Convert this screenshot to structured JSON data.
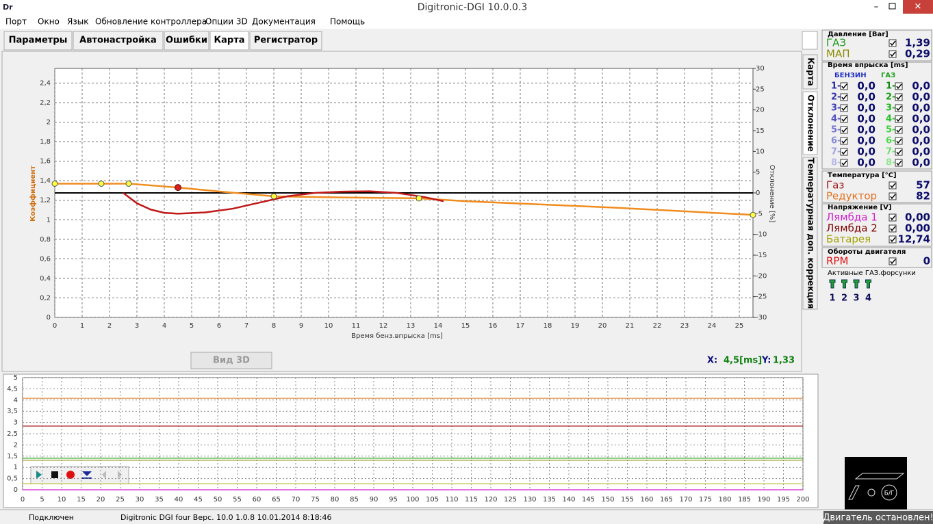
{
  "window": {
    "title": "Digitronic-DGI  10.0.0.3",
    "logo": "Dr"
  },
  "menu": [
    "Порт",
    "Окно",
    "Язык",
    "Обновление контроллера",
    "Опции 3D",
    "Документация",
    "Помощь"
  ],
  "tabs": [
    "Параметры",
    "Автонастройка",
    "Ошибки",
    "Карта",
    "Регистратор"
  ],
  "side_tabs": [
    "Карта",
    "Отклонение",
    "Температурная доп. коррекция"
  ],
  "main_chart": {
    "type": "line",
    "y_label": "Коэффициент",
    "y2_label": "Отклонение [%]",
    "x_label": "Время бенз.впрыска [ms]",
    "xlim": [
      0,
      25.5
    ],
    "ylim": [
      0,
      2.55
    ],
    "y2lim": [
      -30,
      30
    ],
    "xticks": [
      0,
      1,
      2,
      3,
      4,
      5,
      6,
      7,
      8,
      9,
      10,
      11,
      12,
      13,
      14,
      15,
      16,
      17,
      18,
      19,
      20,
      21,
      22,
      23,
      24,
      25
    ],
    "yticks": [
      0,
      {
        "value": 0.2,
        "label": "0,2"
      },
      {
        "value": 0.4,
        "label": "0,4"
      },
      {
        "value": 0.6,
        "label": "0,6"
      },
      {
        "value": 0.8,
        "label": "0,8"
      },
      1,
      {
        "value": 1.2,
        "label": "1,2"
      },
      {
        "value": 1.4,
        "label": "1,4"
      },
      {
        "value": 1.6,
        "label": "1,6"
      },
      {
        "value": 1.8,
        "label": "1,8"
      },
      2,
      {
        "value": 2.2,
        "label": "2,2"
      },
      {
        "value": 2.4,
        "label": "2,4"
      }
    ],
    "y2ticks": [
      -30,
      -25,
      -20,
      -15,
      -10,
      -5,
      0,
      5,
      10,
      15,
      20,
      25,
      30
    ],
    "grid": true,
    "series": [
      {
        "color": "#f08c1e",
        "x": [
          0,
          1.7,
          2.7,
          4.5,
          6,
          8,
          10,
          13.3,
          15,
          20,
          25.5
        ],
        "values": [
          1.37,
          1.37,
          1.37,
          1.33,
          1.29,
          1.24,
          1.23,
          1.22,
          1.19,
          1.13,
          1.05
        ]
      },
      {
        "color": "#c01818",
        "axis": "y2",
        "x": [
          2.5,
          3,
          3.5,
          4,
          4.5,
          5.5,
          6.5,
          7.5,
          8.5,
          9.5,
          10.5,
          11.5,
          12.5,
          13.5,
          14.2
        ],
        "values": [
          0,
          -2.5,
          -4,
          -4.8,
          -5,
          -4.7,
          -3.8,
          -2.3,
          -0.8,
          0,
          0.3,
          0.4,
          0,
          -1,
          -2
        ]
      }
    ],
    "points": {
      "color": "#ffff40",
      "x": [
        0,
        1.7,
        2.7,
        8,
        13.3,
        25.5
      ],
      "values": [
        1.37,
        1.37,
        1.37,
        1.24,
        1.22,
        1.05
      ]
    },
    "cursor": {
      "color": "#d82020",
      "x": 4.5,
      "value": 1.33
    }
  },
  "button_3d": "Вид 3D",
  "coords": {
    "x_label": "X:",
    "x_value": "4,5[ms]",
    "y_label": "Y:",
    "y_value": "1,33"
  },
  "log_chart": {
    "type": "line",
    "xlim": [
      0,
      200
    ],
    "ylim": [
      0,
      5
    ],
    "xticks": [
      0,
      5,
      10,
      15,
      20,
      25,
      30,
      35,
      40,
      45,
      50,
      55,
      60,
      65,
      70,
      75,
      80,
      85,
      90,
      95,
      100,
      105,
      110,
      115,
      120,
      125,
      130,
      135,
      140,
      145,
      150,
      155,
      160,
      165,
      170,
      175,
      180,
      185,
      190,
      195,
      200
    ],
    "yticks": [
      0,
      {
        "value": 0.5,
        "label": "0,5"
      },
      1,
      {
        "value": 1.5,
        "label": "1,5"
      },
      2,
      {
        "value": 2.5,
        "label": "2,5"
      },
      3,
      {
        "value": 3.5,
        "label": "3,5"
      },
      4,
      {
        "value": 4.5,
        "label": "4,5"
      },
      5
    ],
    "grid": true,
    "lines": [
      {
        "color": "#e08a3a",
        "value": 4.08
      },
      {
        "color": "#a01010",
        "value": 2.84
      },
      {
        "color": "#20a020",
        "value": 1.41
      },
      {
        "color": "#8a8a00",
        "value": 1.32
      },
      {
        "color": "#c0c040",
        "value": 0.27
      },
      {
        "color": "#d020d0",
        "value": 0
      }
    ]
  },
  "panel": {
    "pressure": {
      "title": "Давление [Bar]",
      "rows": [
        {
          "label": "ГАЗ",
          "value": "1,39"
        },
        {
          "label": "МАП",
          "value": "0,29"
        }
      ]
    },
    "injection": {
      "title": "Время впрыска [ms]",
      "petrol_header": "БЕНЗИН",
      "gas_header": "ГАЗ",
      "petrol_labels": [
        "1-",
        "2-",
        "3-",
        "4-",
        "5-",
        "6-",
        "7-",
        "8-"
      ],
      "petrol_values": [
        "0,0",
        "0,0",
        "0,0",
        "0,0",
        "0,0",
        "0,0",
        "0,0",
        "0,0"
      ],
      "gas_labels": [
        "1-",
        "2-",
        "3-",
        "4-",
        "5-",
        "6-",
        "7-",
        "8-"
      ],
      "gas_values": [
        "0,0",
        "0,0",
        "0,0",
        "0,0",
        "0,0",
        "0,0",
        "0,0",
        "0,0"
      ]
    },
    "temperature": {
      "title": "Температура  [°C]",
      "rows": [
        {
          "label": "Газ",
          "value": "57"
        },
        {
          "label": "Редуктор",
          "value": "82"
        }
      ]
    },
    "voltage": {
      "title": "Напряжение [V]",
      "rows": [
        {
          "label": "Лямбда 1",
          "value": "0,00"
        },
        {
          "label": "Лямбда 2",
          "value": "0,00"
        },
        {
          "label": "Батарея",
          "value": "12,74"
        }
      ]
    },
    "rpm": {
      "title": "Обороты двигателя",
      "rows": [
        {
          "label": "RPM",
          "value": "0"
        }
      ]
    },
    "injectors": {
      "title": "Активные ГАЗ.форсунки",
      "numbers": [
        "1",
        "2",
        "3",
        "4"
      ]
    }
  },
  "icon_label": "Б/Г",
  "status": {
    "connection": "Подключен",
    "info": "Digitronic DGI four  Верс. 10.0  1.0.8    10.01.2014 8:18:46",
    "engine": "Двигатель остановлен!"
  }
}
